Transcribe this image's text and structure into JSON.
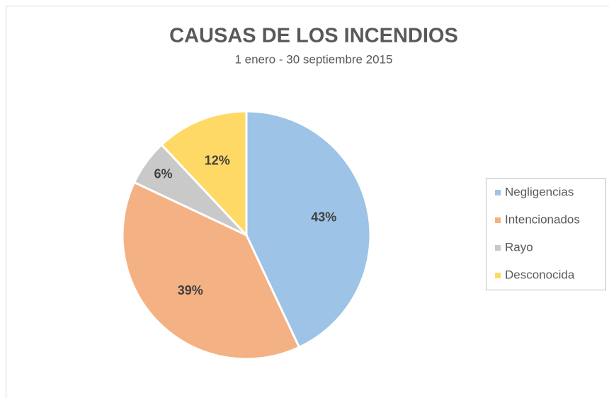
{
  "chart_data": {
    "type": "pie",
    "title": "CAUSAS DE LOS INCENDIOS",
    "subtitle": "1 enero - 30 septiembre 2015",
    "categories": [
      "Negligencias",
      "Intencionados",
      "Rayo",
      "Desconocida"
    ],
    "values": [
      43,
      39,
      6,
      12
    ],
    "value_labels": [
      "43%",
      "39%",
      "6%",
      "12%"
    ],
    "colors": [
      "#9dc3e6",
      "#f4b183",
      "#c9c9c9",
      "#ffd966"
    ],
    "legend": "right"
  }
}
